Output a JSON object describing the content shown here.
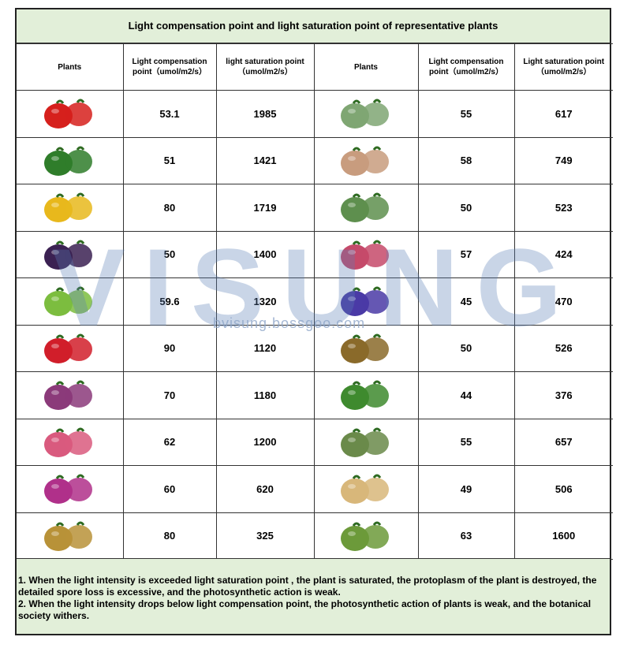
{
  "title": "Light compensation point and light saturation point of representative plants",
  "headers": {
    "plants": "Plants",
    "lcp": "Light compensation point（umol/m2/s）",
    "lsp": "light saturation point（umol/m2/s）",
    "plants2": "Plants",
    "lcp2": "Light compensation point（umol/m2/s）",
    "lsp2": "Light saturation point（umol/m2/s）"
  },
  "rows": [
    {
      "left_icon": "tomato-icon",
      "left_color": "#d6201c",
      "lcp": "53.1",
      "lsp": "1985",
      "right_icon": "succulent-mix-icon",
      "right_color": "#7fa673",
      "lcp2": "55",
      "lsp2": "617"
    },
    {
      "left_icon": "watermelon-icon",
      "left_color": "#2f7d2a",
      "lcp": "51",
      "lsp": "1421",
      "right_icon": "lithops-icon",
      "right_color": "#c89c7e",
      "lcp2": "58",
      "lsp2": "749"
    },
    {
      "left_icon": "peppers-icon",
      "left_color": "#e8b81c",
      "lcp": "80",
      "lsp": "1719",
      "right_icon": "haworthia-icon",
      "right_color": "#5e8f4e",
      "lcp2": "50",
      "lsp2": "523"
    },
    {
      "left_icon": "eggplant-icon",
      "left_color": "#3b2152",
      "lcp": "50",
      "lsp": "1400",
      "right_icon": "gladiolus-icon",
      "right_color": "#c54a6a",
      "lcp2": "57",
      "lsp2": "424"
    },
    {
      "left_icon": "lettuce-icon",
      "left_color": "#7cbd3f",
      "lcp": "59.6",
      "lsp": "1320",
      "right_icon": "african-violet-icon",
      "right_color": "#4a3aa6",
      "lcp2": "45",
      "lsp2": "470"
    },
    {
      "left_icon": "strawberry-icon",
      "left_color": "#d11e2a",
      "lcp": "90",
      "lsp": "1120",
      "right_icon": "venus-flytrap-icon",
      "right_color": "#8a6a2a",
      "lcp2": "50",
      "lsp2": "526"
    },
    {
      "left_icon": "grapes-icon",
      "left_color": "#8b3a7a",
      "lcp": "70",
      "lsp": "1180",
      "right_icon": "pothos-icon",
      "right_color": "#3e8a2e",
      "lcp2": "44",
      "lsp2": "376"
    },
    {
      "left_icon": "roses-icon",
      "left_color": "#d95a7e",
      "lcp": "62",
      "lsp": "1200",
      "right_icon": "potted-flower-icon",
      "right_color": "#6a8a4a",
      "lcp2": "55",
      "lsp2": "657"
    },
    {
      "left_icon": "orchid-icon",
      "left_color": "#b0308a",
      "lcp": "60",
      "lsp": "620",
      "right_icon": "ginseng-icon",
      "right_color": "#d8b77a",
      "lcp2": "49",
      "lsp2": "506"
    },
    {
      "left_icon": "tremella-icon",
      "left_color": "#b89238",
      "lcp": "80",
      "lsp": "325",
      "right_icon": "hemp-plant-icon",
      "right_color": "#6c9a3a",
      "lcp2": "63",
      "lsp2": "1600"
    }
  ],
  "notes": [
    "1. When the light intensity is exceeded light saturation point , the plant is saturated, the protoplasm of the plant is destroyed, the detailed spore loss is excessive, and the photosynthetic action is weak.",
    " 2. When the light intensity drops below light compensation point, the photosynthetic action of plants is weak, and the botanical society withers."
  ],
  "watermark": {
    "brand": "VISUNG",
    "url": "bvisung.bossgoo.com",
    "color": "#5b7fb5"
  }
}
